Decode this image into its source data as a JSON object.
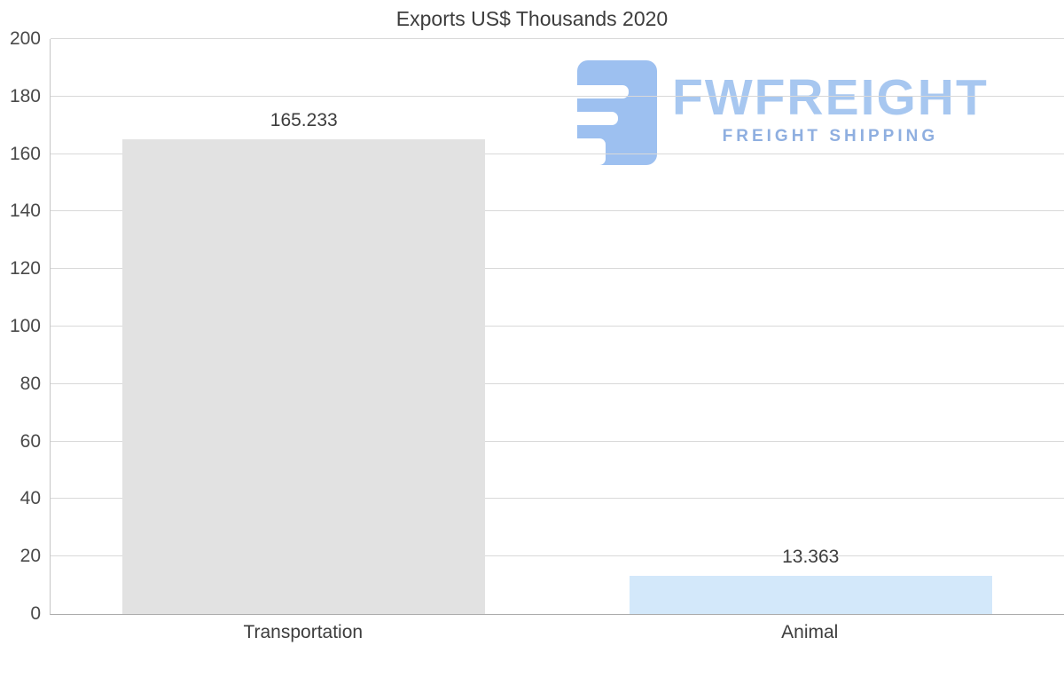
{
  "chart_data": {
    "type": "bar",
    "title": "Exports US$ Thousands 2020",
    "categories": [
      "Transportation",
      "Animal"
    ],
    "values": [
      165.233,
      13.363
    ],
    "value_labels": [
      "165.233",
      "13.363"
    ],
    "bar_colors": [
      "#e2e2e2",
      "#d3e8fa"
    ],
    "xlabel": "",
    "ylabel": "",
    "ylim": [
      0,
      200
    ],
    "ytick_step": 20,
    "grid": true,
    "legend": "none",
    "gridline_color": "#d9d9d9"
  },
  "watermark": {
    "name": "FWFREIGHT",
    "tagline": "FREIGHT SHIPPING",
    "color": "#a7c7f0",
    "tagline_color": "#8fafe0",
    "icon_color": "#9dc0f0",
    "icon": "fwfreight-f-blocks-icon"
  }
}
